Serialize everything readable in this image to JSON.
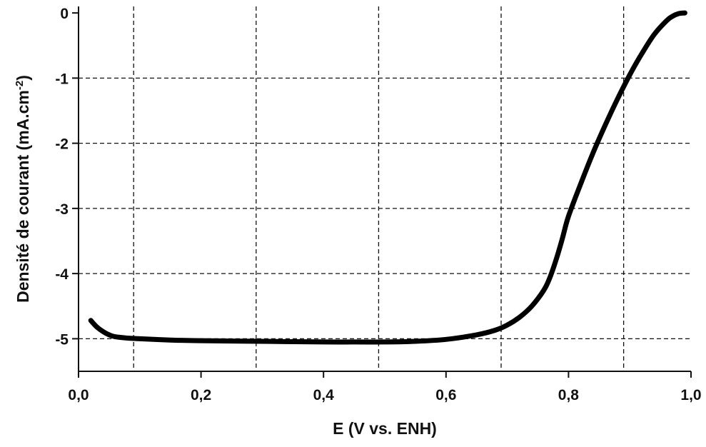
{
  "chart_data": {
    "type": "line",
    "title": "",
    "xlabel": "E (V vs. ENH)",
    "ylabel": "Densité de courant (mA.cm",
    "ylabel_superscript": "-2",
    "ylabel_close": ")",
    "xlim": [
      0.0,
      1.0
    ],
    "ylim": [
      -5.5,
      0.1
    ],
    "x_ticks": [
      0.0,
      0.2,
      0.4,
      0.6,
      0.8,
      1.0
    ],
    "x_tick_labels": [
      "0,0",
      "0,2",
      "0,4",
      "0,6",
      "0,8",
      "1,0"
    ],
    "y_ticks": [
      0,
      -1,
      -2,
      -3,
      -4,
      -5
    ],
    "y_tick_labels": [
      "0",
      "-1",
      "-2",
      "-3",
      "-4",
      "-5"
    ],
    "x_grid": [
      0.09,
      0.29,
      0.49,
      0.69,
      0.89
    ],
    "y_grid": [
      -1,
      -2,
      -3,
      -4,
      -5
    ],
    "grid": true,
    "legend": "none",
    "series": [
      {
        "x": [
          0.02,
          0.03,
          0.04,
          0.05,
          0.06,
          0.08,
          0.1,
          0.15,
          0.2,
          0.3,
          0.4,
          0.45,
          0.5,
          0.55,
          0.6,
          0.65,
          0.68,
          0.7,
          0.72,
          0.74,
          0.76,
          0.77,
          0.78,
          0.79,
          0.8,
          0.82,
          0.84,
          0.86,
          0.88,
          0.9,
          0.92,
          0.94,
          0.96,
          0.97,
          0.98,
          0.99
        ],
        "y": [
          -4.72,
          -4.82,
          -4.89,
          -4.94,
          -4.97,
          -4.99,
          -5.0,
          -5.02,
          -5.03,
          -5.04,
          -5.05,
          -5.05,
          -5.05,
          -5.04,
          -5.01,
          -4.94,
          -4.87,
          -4.79,
          -4.67,
          -4.5,
          -4.25,
          -4.05,
          -3.78,
          -3.46,
          -3.12,
          -2.62,
          -2.15,
          -1.72,
          -1.32,
          -0.95,
          -0.62,
          -0.33,
          -0.12,
          -0.05,
          -0.01,
          0.0
        ]
      }
    ]
  }
}
